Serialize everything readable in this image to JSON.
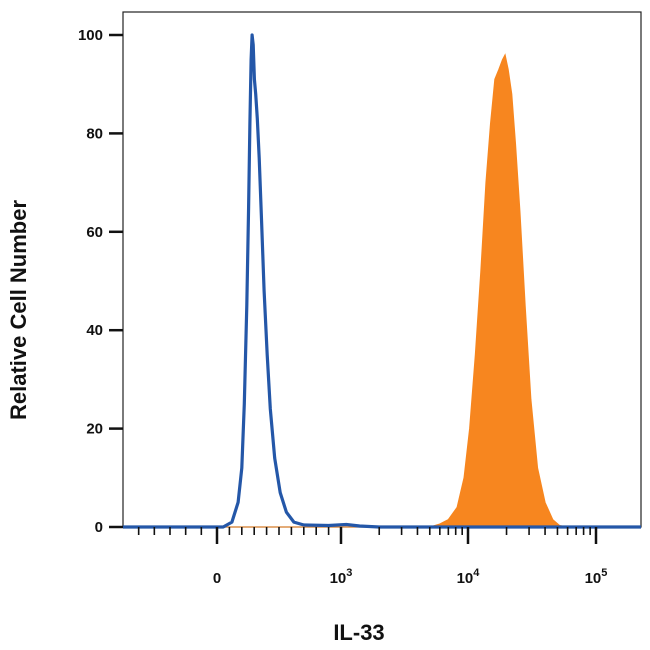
{
  "chart_data": {
    "type": "area",
    "title": "",
    "xlabel": "IL-33",
    "ylabel": "Relative Cell Number",
    "x_scale": "biexponential",
    "xlim": [
      -600,
      200000
    ],
    "ylim": [
      0,
      105
    ],
    "x_ticks": [
      {
        "value": 0,
        "label": "0",
        "exp": ""
      },
      {
        "value": 1000,
        "label": "10",
        "exp": "3"
      },
      {
        "value": 10000,
        "label": "10",
        "exp": "4"
      },
      {
        "value": 100000,
        "label": "10",
        "exp": "5"
      }
    ],
    "y_ticks": [
      {
        "value": 0,
        "label": "0"
      },
      {
        "value": 20,
        "label": "20"
      },
      {
        "value": 40,
        "label": "40"
      },
      {
        "value": 60,
        "label": "60"
      },
      {
        "value": 80,
        "label": "80"
      },
      {
        "value": 100,
        "label": "100"
      }
    ],
    "grid": false,
    "series": [
      {
        "style": "outline",
        "color": "#2457a8",
        "points": [
          [
            -600,
            0
          ],
          [
            -200,
            0
          ],
          [
            50,
            0
          ],
          [
            120,
            1
          ],
          [
            170,
            5
          ],
          [
            200,
            12
          ],
          [
            220,
            25
          ],
          [
            240,
            45
          ],
          [
            255,
            65
          ],
          [
            265,
            82
          ],
          [
            275,
            95
          ],
          [
            283,
            100
          ],
          [
            292,
            98
          ],
          [
            302,
            91
          ],
          [
            312,
            88
          ],
          [
            325,
            83
          ],
          [
            340,
            75
          ],
          [
            360,
            62
          ],
          [
            380,
            48
          ],
          [
            405,
            35
          ],
          [
            430,
            24
          ],
          [
            465,
            14
          ],
          [
            510,
            7
          ],
          [
            560,
            3
          ],
          [
            620,
            1
          ],
          [
            700,
            0.4
          ],
          [
            900,
            0.3
          ],
          [
            1100,
            0.5
          ],
          [
            1400,
            0.2
          ],
          [
            2000,
            0
          ],
          [
            200000,
            0
          ]
        ]
      },
      {
        "style": "filled",
        "color": "#f7861f",
        "points": [
          [
            -600,
            0
          ],
          [
            5000,
            0
          ],
          [
            6000,
            0.6
          ],
          [
            7000,
            1.5
          ],
          [
            8200,
            4
          ],
          [
            9300,
            10
          ],
          [
            10300,
            20
          ],
          [
            11400,
            35
          ],
          [
            12600,
            52
          ],
          [
            13800,
            70
          ],
          [
            15000,
            82
          ],
          [
            16200,
            91
          ],
          [
            17400,
            93
          ],
          [
            18600,
            95
          ],
          [
            19500,
            96
          ],
          [
            20600,
            93
          ],
          [
            22000,
            88
          ],
          [
            23500,
            78
          ],
          [
            25500,
            64
          ],
          [
            28000,
            45
          ],
          [
            31000,
            26
          ],
          [
            35000,
            12
          ],
          [
            40000,
            5
          ],
          [
            46000,
            1.5
          ],
          [
            52000,
            0.3
          ],
          [
            60000,
            0
          ],
          [
            200000,
            0
          ]
        ]
      }
    ]
  }
}
